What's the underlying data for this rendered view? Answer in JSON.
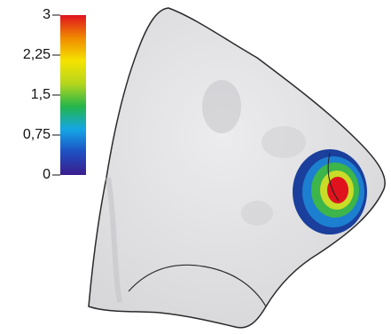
{
  "colorbar": {
    "lim": [
      0,
      3
    ],
    "ticks": [
      0,
      {
        "value": 0.75,
        "label": "0,75"
      },
      {
        "value": 1.5,
        "label": "1,5"
      },
      {
        "value": 2.25,
        "label": "2,25"
      },
      3
    ],
    "colors": [
      "#3b1d8c",
      "#1e4fc2",
      "#14a6e6",
      "#25b54a",
      "#b5d61e",
      "#f6e300",
      "#f08a00",
      "#e0121e"
    ]
  }
}
